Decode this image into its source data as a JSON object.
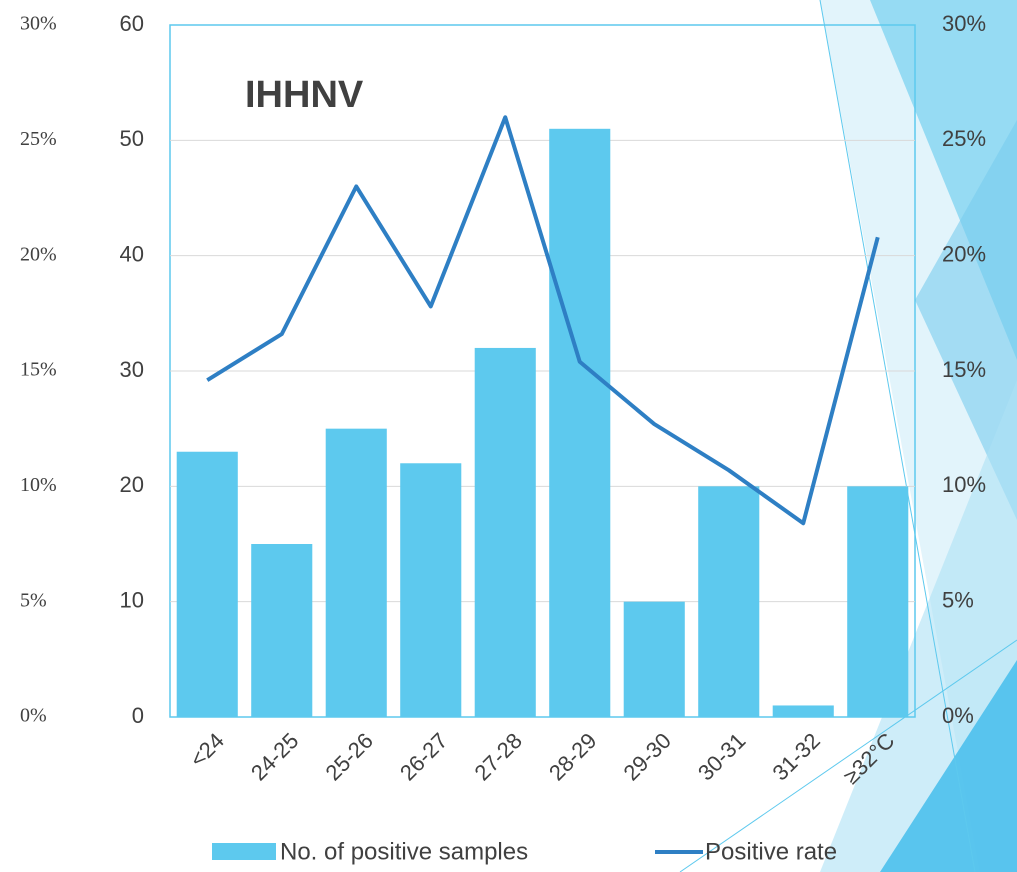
{
  "chart_data": {
    "type": "bar-line",
    "title": "IHHNV",
    "categories": [
      "<24",
      "24-25",
      "25-26",
      "26-27",
      "27-28",
      "28-29",
      "29-30",
      "30-31",
      "31-32",
      "≥32°C"
    ],
    "series": [
      {
        "name": "No. of positive samples",
        "type": "bar",
        "color": "#5dc9ee",
        "values": [
          23,
          15,
          25,
          22,
          32,
          51,
          10,
          20,
          1,
          20
        ]
      },
      {
        "name": "Positive rate",
        "type": "line",
        "axis": "y2",
        "color": "#2e7fc4",
        "values": [
          14.6,
          16.6,
          23.0,
          17.8,
          26.0,
          15.4,
          12.7,
          10.7,
          8.4,
          20.8
        ]
      }
    ],
    "ylim": [
      0,
      60
    ],
    "yticks": [
      0,
      10,
      20,
      30,
      40,
      50,
      60
    ],
    "y2lim": [
      0,
      30
    ],
    "y2ticks": [
      {
        "value": 0,
        "label": "0%"
      },
      {
        "value": 5,
        "label": "5%"
      },
      {
        "value": 10,
        "label": "10%"
      },
      {
        "value": 15,
        "label": "15%"
      },
      {
        "value": 20,
        "label": "20%"
      },
      {
        "value": 25,
        "label": "25%"
      },
      {
        "value": 30,
        "label": "30%"
      }
    ],
    "y3lim": [
      0,
      30
    ],
    "y3ticks": [
      {
        "value": 0,
        "label": "0%"
      },
      {
        "value": 5,
        "label": "5%"
      },
      {
        "value": 10,
        "label": "10%"
      },
      {
        "value": 15,
        "label": "15%"
      },
      {
        "value": 20,
        "label": "20%"
      },
      {
        "value": 25,
        "label": "25%"
      },
      {
        "value": 30,
        "label": "30%"
      }
    ],
    "grid": true,
    "legend": "bottom"
  }
}
